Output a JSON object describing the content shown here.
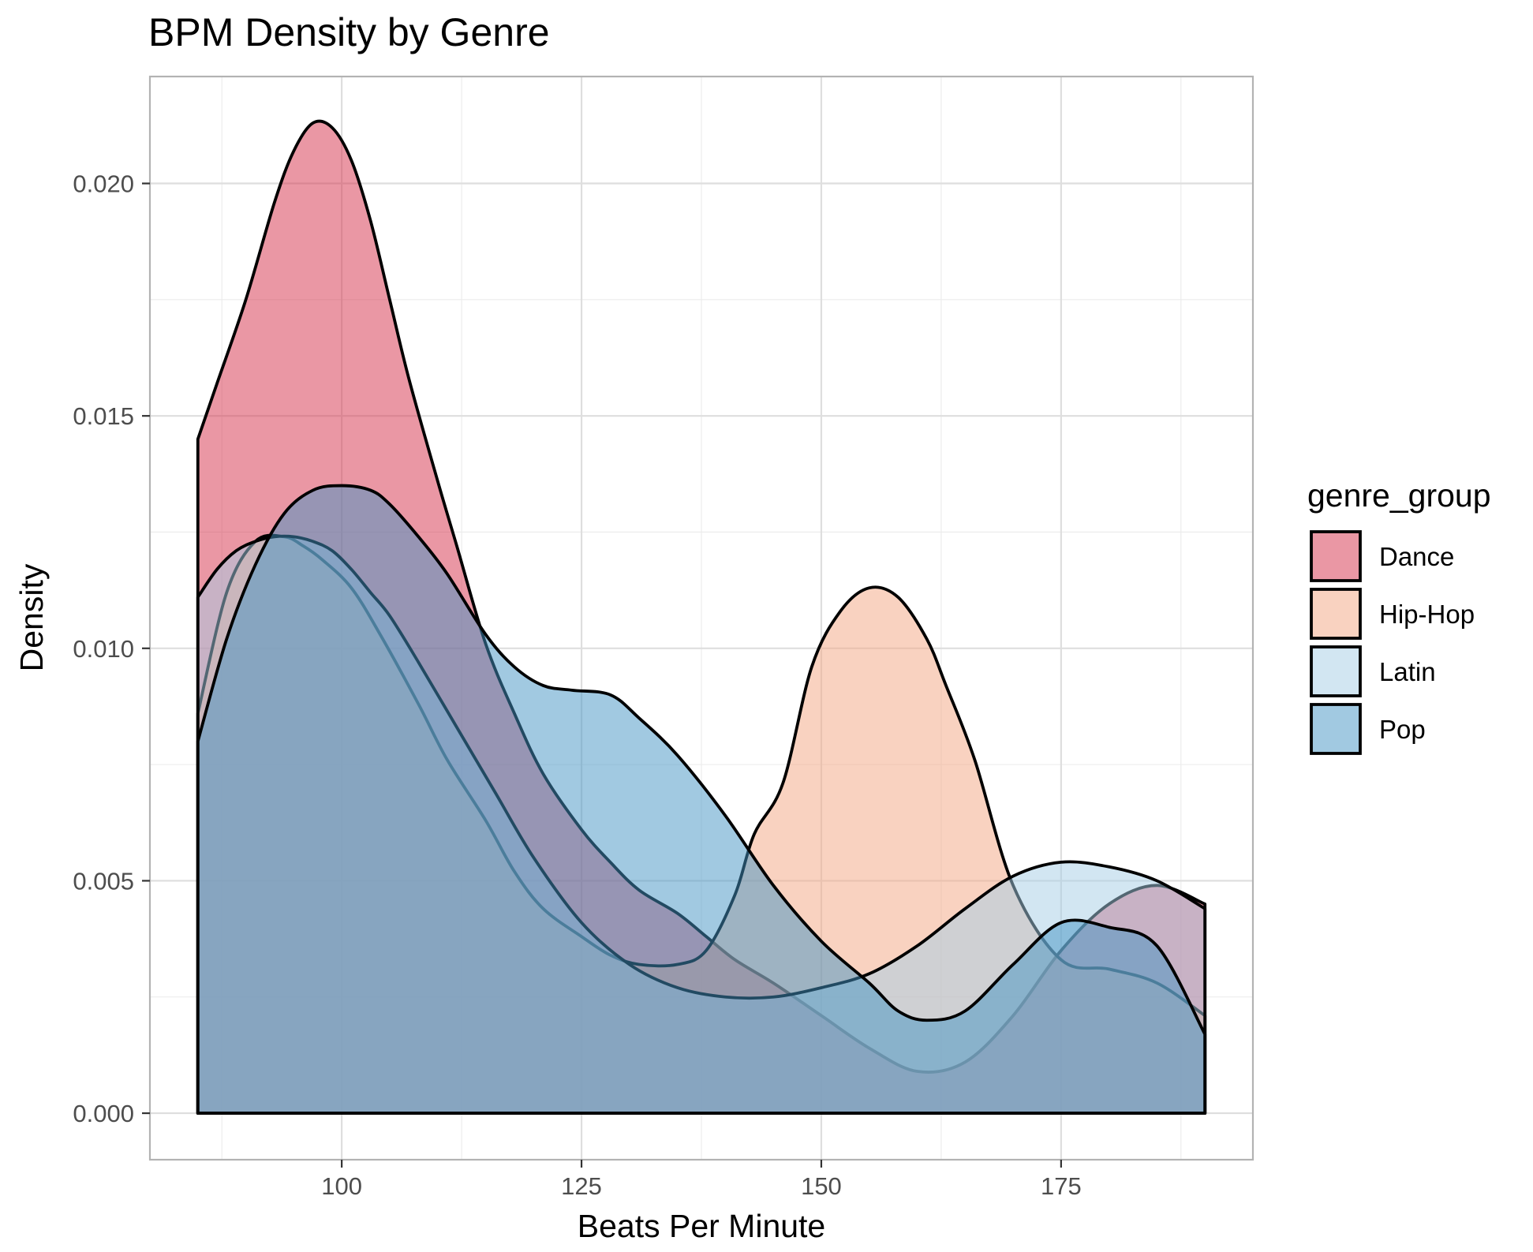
{
  "chart_data": {
    "type": "area",
    "subtype": "density",
    "title": "BPM Density by Genre",
    "xlabel": "Beats Per Minute",
    "ylabel": "Density",
    "xlim": [
      80,
      195
    ],
    "ylim": [
      -0.001,
      0.0223
    ],
    "x_ticks": [
      100,
      125,
      150,
      175
    ],
    "y_ticks": [
      0,
      0.005,
      0.01,
      0.015,
      0.02
    ],
    "x_tick_labels": [
      "100",
      "125",
      "150",
      "175"
    ],
    "y_tick_labels": [
      "0.000",
      "0.005",
      "0.010",
      "0.015",
      "0.020"
    ],
    "grid": true,
    "legend": {
      "title": "genre_group",
      "position": "right"
    },
    "fill_opacity": 0.5,
    "series": [
      {
        "name": "Dance",
        "color": "#d6304a",
        "x": [
          85,
          87,
          90,
          93,
          95,
          97,
          99,
          101,
          103,
          105,
          107,
          110,
          112,
          115,
          118,
          121,
          125,
          128,
          131,
          135,
          138,
          141,
          145,
          150,
          155,
          160,
          165,
          170,
          175,
          180,
          185,
          190
        ],
        "y": [
          0.0145,
          0.0157,
          0.0175,
          0.0196,
          0.0207,
          0.0213,
          0.0212,
          0.0205,
          0.0192,
          0.0175,
          0.0158,
          0.0136,
          0.0122,
          0.0101,
          0.0086,
          0.0073,
          0.0061,
          0.0054,
          0.0048,
          0.0043,
          0.0038,
          0.0033,
          0.0028,
          0.0021,
          0.0014,
          0.0009,
          0.0011,
          0.0021,
          0.0035,
          0.0045,
          0.0049,
          0.0045
        ]
      },
      {
        "name": "Hip-Hop",
        "color": "#f4a582",
        "x": [
          85,
          88,
          91,
          94,
          96,
          98,
          101,
          104,
          108,
          111,
          115,
          118,
          121,
          125,
          128,
          131,
          135,
          138,
          141,
          143,
          146,
          149,
          152,
          155,
          158,
          161,
          163,
          166,
          170,
          175,
          180,
          185,
          190
        ],
        "y": [
          0.0086,
          0.0112,
          0.0123,
          0.0124,
          0.0122,
          0.0119,
          0.0113,
          0.0103,
          0.0088,
          0.0076,
          0.0063,
          0.0052,
          0.0044,
          0.0038,
          0.0034,
          0.0032,
          0.0032,
          0.0035,
          0.0047,
          0.006,
          0.0071,
          0.0096,
          0.0108,
          0.0113,
          0.0111,
          0.0102,
          0.0092,
          0.0076,
          0.0049,
          0.0033,
          0.0031,
          0.0028,
          0.0021
        ]
      },
      {
        "name": "Latin",
        "color": "#a6cde6",
        "x": [
          85,
          87,
          89,
          91,
          93,
          95,
          97,
          99,
          101,
          103,
          105,
          108,
          112,
          116,
          120,
          125,
          130,
          135,
          140,
          145,
          150,
          155,
          160,
          165,
          170,
          175,
          180,
          185,
          190
        ],
        "y": [
          0.0111,
          0.0117,
          0.0121,
          0.0123,
          0.0124,
          0.0124,
          0.0123,
          0.0121,
          0.0117,
          0.0112,
          0.0107,
          0.0097,
          0.0083,
          0.0069,
          0.0055,
          0.0041,
          0.0032,
          0.0027,
          0.0025,
          0.0025,
          0.0027,
          0.003,
          0.0036,
          0.0044,
          0.0051,
          0.0054,
          0.0053,
          0.005,
          0.0044
        ]
      },
      {
        "name": "Pop",
        "color": "#4393c3",
        "x": [
          85,
          88,
          91,
          94,
          97,
          100,
          103,
          105,
          108,
          111,
          115,
          118,
          121,
          124,
          128,
          131,
          135,
          140,
          145,
          150,
          155,
          158,
          161,
          165,
          170,
          175,
          180,
          185,
          190
        ],
        "y": [
          0.008,
          0.0102,
          0.0118,
          0.0129,
          0.0134,
          0.0135,
          0.0134,
          0.0131,
          0.0124,
          0.0116,
          0.0103,
          0.0096,
          0.0092,
          0.0091,
          0.009,
          0.0085,
          0.0077,
          0.0064,
          0.0049,
          0.0037,
          0.0028,
          0.0022,
          0.002,
          0.0022,
          0.0032,
          0.0041,
          0.004,
          0.0036,
          0.0017
        ]
      }
    ]
  }
}
